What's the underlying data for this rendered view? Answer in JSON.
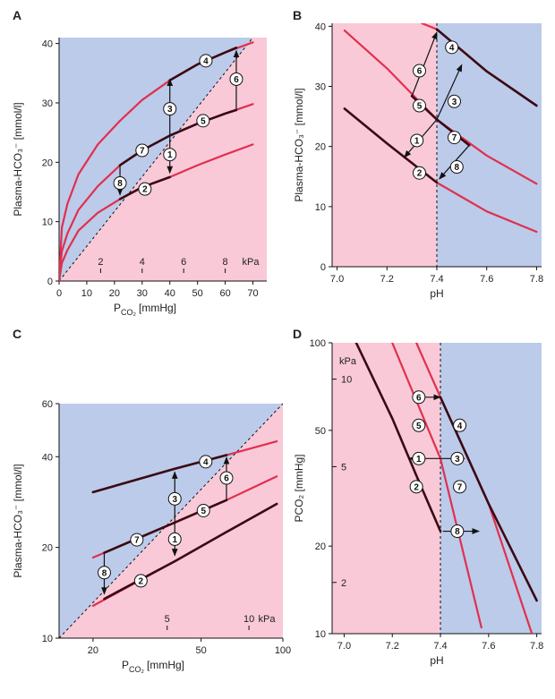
{
  "colors": {
    "pink": "#f9c9d8",
    "blue": "#bccbea",
    "red": "#e0304e",
    "dark": "#3a0a14",
    "ink": "#111111"
  },
  "chart_data": [
    {
      "id": "A",
      "type": "line",
      "panel_label": "A",
      "xlabel": "P",
      "xlabel_sub": "CO₂",
      "xlabel_unit": "[mmHg]",
      "ylabel": "Plasma-HCO₃⁻ [mmol/l]",
      "xlim": [
        0,
        75
      ],
      "ylim": [
        0,
        41
      ],
      "xscale": "linear",
      "yscale": "linear",
      "xticks": [
        "0",
        "10",
        "20",
        "30",
        "40",
        "50",
        "60",
        "70"
      ],
      "xticks_values": [
        0,
        10,
        20,
        30,
        40,
        50,
        60,
        70
      ],
      "yticks": [
        "0",
        "10",
        "20",
        "30",
        "40"
      ],
      "yticks_values": [
        0,
        10,
        20,
        30,
        40
      ],
      "secondary_xticks": [
        "2",
        "4",
        "6",
        "8"
      ],
      "secondary_xticks_values": [
        15,
        30,
        45,
        60
      ],
      "secondary_unit": "kPa",
      "divider": {
        "kind": "diag",
        "points": [
          [
            0,
            0
          ],
          [
            70,
            41
          ]
        ]
      },
      "background": {
        "upper_left": "blue",
        "lower_right": "pink"
      },
      "series": [
        {
          "color": "red",
          "points": [
            [
              0,
              0
            ],
            [
              1,
              9
            ],
            [
              3,
              13
            ],
            [
              7,
              18
            ],
            [
              14,
              23
            ],
            [
              22,
              27
            ],
            [
              30,
              30.5
            ],
            [
              40,
              33.8
            ],
            [
              50,
              36.5
            ],
            [
              60,
              38.5
            ],
            [
              70,
              40.2
            ]
          ]
        },
        {
          "color": "red",
          "points": [
            [
              0,
              0
            ],
            [
              1,
              5
            ],
            [
              3,
              8
            ],
            [
              7,
              12
            ],
            [
              14,
              16
            ],
            [
              22,
              19.5
            ],
            [
              30,
              22
            ],
            [
              40,
              24.5
            ],
            [
              50,
              26.5
            ],
            [
              60,
              28.2
            ],
            [
              70,
              29.8
            ]
          ]
        },
        {
          "color": "red",
          "points": [
            [
              0,
              0
            ],
            [
              1,
              3
            ],
            [
              3,
              5.2
            ],
            [
              7,
              8.5
            ],
            [
              14,
              11.5
            ],
            [
              22,
              13.8
            ],
            [
              30,
              15.8
            ],
            [
              40,
              17.5
            ],
            [
              50,
              19.5
            ],
            [
              60,
              21.3
            ],
            [
              70,
              23
            ]
          ]
        },
        {
          "color": "dark",
          "points": [
            [
              40,
              33.8
            ],
            [
              50,
              36.5
            ],
            [
              60,
              38.5
            ],
            [
              64,
              39.3
            ]
          ]
        },
        {
          "color": "dark",
          "points": [
            [
              22,
              19.5
            ],
            [
              30,
              22
            ],
            [
              40,
              24.5
            ],
            [
              50,
              26.5
            ],
            [
              60,
              28.2
            ],
            [
              64,
              28.8
            ]
          ]
        },
        {
          "color": "dark",
          "points": [
            [
              22,
              13.8
            ],
            [
              30,
              15.8
            ],
            [
              40,
              17.5
            ]
          ]
        }
      ],
      "arrows": [
        {
          "from": [
            40,
            24
          ],
          "to": [
            40,
            34
          ]
        },
        {
          "from": [
            40,
            24
          ],
          "to": [
            40,
            18.2
          ]
        },
        {
          "from": [
            64,
            29
          ],
          "to": [
            64,
            38.8
          ]
        },
        {
          "from": [
            22,
            19.5
          ],
          "to": [
            22,
            14.5
          ]
        }
      ],
      "markers": [
        {
          "label": "1",
          "x": 40,
          "y": 21.3
        },
        {
          "label": "2",
          "x": 31,
          "y": 15.5
        },
        {
          "label": "3",
          "x": 40,
          "y": 29
        },
        {
          "label": "4",
          "x": 53,
          "y": 37.1
        },
        {
          "label": "5",
          "x": 52,
          "y": 27
        },
        {
          "label": "6",
          "x": 64,
          "y": 34
        },
        {
          "label": "7",
          "x": 30,
          "y": 22
        },
        {
          "label": "8",
          "x": 22,
          "y": 16.5
        }
      ]
    },
    {
      "id": "B",
      "type": "line",
      "panel_label": "B",
      "xlabel": "pH",
      "ylabel": "Plasma-HCO₃⁻ [mmol/l]",
      "xlim": [
        6.98,
        7.82
      ],
      "ylim": [
        0,
        40.5
      ],
      "xscale": "linear",
      "yscale": "linear",
      "xticks": [
        "7.0",
        "7.2",
        "7.4",
        "7.6",
        "7.8"
      ],
      "xticks_values": [
        7.0,
        7.2,
        7.4,
        7.6,
        7.8
      ],
      "yticks": [
        "0",
        "10",
        "20",
        "30",
        "40"
      ],
      "yticks_values": [
        0,
        10,
        20,
        30,
        40
      ],
      "divider": {
        "kind": "vline",
        "x": 7.4
      },
      "background": {
        "left": "pink",
        "right": "blue"
      },
      "series": [
        {
          "color": "red",
          "points": [
            [
              7.03,
              39.3
            ],
            [
              7.2,
              33
            ],
            [
              7.4,
              24.5
            ],
            [
              7.6,
              18.5
            ],
            [
              7.8,
              13.8
            ]
          ]
        },
        {
          "color": "red",
          "points": [
            [
              7.03,
              26.3
            ],
            [
              7.2,
              20.5
            ],
            [
              7.4,
              14
            ],
            [
              7.6,
              9.2
            ],
            [
              7.8,
              5.8
            ]
          ]
        },
        {
          "color": "red",
          "points": [
            [
              7.34,
              40.5
            ],
            [
              7.4,
              39.5
            ],
            [
              7.6,
              32.5
            ],
            [
              7.8,
              26.8
            ]
          ]
        },
        {
          "color": "dark",
          "points": [
            [
              7.4,
              39.5
            ],
            [
              7.6,
              32.5
            ],
            [
              7.8,
              26.8
            ]
          ]
        },
        {
          "color": "dark",
          "points": [
            [
              7.03,
              26.3
            ],
            [
              7.2,
              20.5
            ],
            [
              7.4,
              14
            ]
          ]
        },
        {
          "color": "dark",
          "points": [
            [
              7.3,
              28.4
            ],
            [
              7.4,
              24.5
            ],
            [
              7.53,
              20.2
            ]
          ]
        }
      ],
      "arrows": [
        {
          "from": [
            7.4,
            24.5
          ],
          "to": [
            7.27,
            18.2
          ]
        },
        {
          "from": [
            7.4,
            24.5
          ],
          "to": [
            7.5,
            33.6
          ]
        },
        {
          "from": [
            7.3,
            28.4
          ],
          "to": [
            7.4,
            39
          ]
        },
        {
          "from": [
            7.53,
            20.2
          ],
          "to": [
            7.41,
            14.6
          ]
        }
      ],
      "markers": [
        {
          "label": "1",
          "x": 7.32,
          "y": 21
        },
        {
          "label": "2",
          "x": 7.33,
          "y": 15.6
        },
        {
          "label": "3",
          "x": 7.47,
          "y": 27.5
        },
        {
          "label": "4",
          "x": 7.46,
          "y": 36.5
        },
        {
          "label": "5",
          "x": 7.33,
          "y": 26.8
        },
        {
          "label": "6",
          "x": 7.33,
          "y": 32.6
        },
        {
          "label": "7",
          "x": 7.47,
          "y": 21.5
        },
        {
          "label": "8",
          "x": 7.48,
          "y": 16.6
        }
      ]
    },
    {
      "id": "C",
      "type": "line",
      "panel_label": "C",
      "xlabel": "P",
      "xlabel_sub": "CO₂",
      "xlabel_unit": "[mmHg]",
      "ylabel": "Plasma-HCO₃⁻ [mmol/l]",
      "xlim": [
        15,
        100
      ],
      "ylim": [
        10,
        60
      ],
      "xscale": "log",
      "yscale": "log",
      "xticks": [
        "20",
        "50",
        "100"
      ],
      "xticks_values": [
        20,
        50,
        100
      ],
      "yticks": [
        "10",
        "20",
        "40",
        "60"
      ],
      "yticks_values": [
        10,
        20,
        40,
        60
      ],
      "secondary_xticks": [
        "5",
        "10"
      ],
      "secondary_xticks_values": [
        37.5,
        75
      ],
      "secondary_unit": "kPa",
      "divider": {
        "kind": "diag",
        "points": [
          [
            15,
            10
          ],
          [
            100,
            60
          ]
        ]
      },
      "background": {
        "upper_left": "blue",
        "lower_right": "pink"
      },
      "series": [
        {
          "color": "red",
          "points": [
            [
              20,
              30.5
            ],
            [
              40,
              36.5
            ],
            [
              62,
              40.5
            ],
            [
              95,
              45
            ]
          ]
        },
        {
          "color": "red",
          "points": [
            [
              20,
              18.5
            ],
            [
              40,
              24.2
            ],
            [
              62,
              28.7
            ],
            [
              95,
              34.4
            ]
          ]
        },
        {
          "color": "red",
          "points": [
            [
              20,
              12.8
            ],
            [
              40,
              18
            ],
            [
              62,
              22.5
            ],
            [
              95,
              27.9
            ]
          ]
        },
        {
          "color": "dark",
          "points": [
            [
              20,
              30.5
            ],
            [
              40,
              36.5
            ],
            [
              62,
              40.5
            ]
          ]
        },
        {
          "color": "dark",
          "points": [
            [
              22,
              19.2
            ],
            [
              40,
              24.2
            ],
            [
              62,
              28.7
            ]
          ]
        },
        {
          "color": "dark",
          "points": [
            [
              22,
              13.5
            ],
            [
              40,
              18
            ],
            [
              62,
              22.5
            ],
            [
              95,
              27.9
            ]
          ]
        }
      ],
      "arrows": [
        {
          "from": [
            40,
            24.2
          ],
          "to": [
            40,
            35.6
          ]
        },
        {
          "from": [
            40,
            24.2
          ],
          "to": [
            40,
            18.8
          ]
        },
        {
          "from": [
            62,
            28.7
          ],
          "to": [
            62,
            39.8
          ]
        },
        {
          "from": [
            22,
            19.2
          ],
          "to": [
            22,
            14
          ]
        }
      ],
      "markers": [
        {
          "label": "1",
          "x": 40,
          "y": 21.3
        },
        {
          "label": "2",
          "x": 30,
          "y": 15.5
        },
        {
          "label": "3",
          "x": 40,
          "y": 29
        },
        {
          "label": "4",
          "x": 52,
          "y": 38.5
        },
        {
          "label": "5",
          "x": 51,
          "y": 26.5
        },
        {
          "label": "6",
          "x": 62,
          "y": 34
        },
        {
          "label": "7",
          "x": 29,
          "y": 21.2
        },
        {
          "label": "8",
          "x": 22,
          "y": 16.5
        }
      ]
    },
    {
      "id": "D",
      "type": "line",
      "panel_label": "D",
      "xlabel": "pH",
      "ylabel": "PCO₂ [mmHg]",
      "xlim": [
        6.95,
        7.82
      ],
      "ylim": [
        10,
        100
      ],
      "xscale": "linear",
      "yscale": "log",
      "xticks": [
        "7.0",
        "7.2",
        "7.4",
        "7.6",
        "7.8"
      ],
      "xticks_values": [
        7.0,
        7.2,
        7.4,
        7.6,
        7.8
      ],
      "yticks": [
        "10",
        "20",
        "50",
        "100"
      ],
      "yticks_values": [
        10,
        20,
        50,
        100
      ],
      "secondary_yticks": [
        "2",
        "5",
        "10"
      ],
      "secondary_yticks_values": [
        15,
        37.5,
        75
      ],
      "secondary_unit": "kPa",
      "divider": {
        "kind": "vline",
        "x": 7.4
      },
      "background": {
        "left": "pink",
        "right": "blue"
      },
      "series": [
        {
          "color": "red",
          "points": [
            [
              7.2,
              100
            ],
            [
              7.4,
              40
            ],
            [
              7.57,
              10.5
            ]
          ]
        },
        {
          "color": "red",
          "points": [
            [
              7.3,
              100
            ],
            [
              7.4,
              65
            ],
            [
              7.6,
              28
            ],
            [
              7.78,
              10
            ]
          ]
        },
        {
          "color": "dark",
          "points": [
            [
              7.05,
              100
            ],
            [
              7.2,
              55
            ],
            [
              7.3,
              35
            ],
            [
              7.4,
              22.5
            ]
          ]
        },
        {
          "color": "dark",
          "points": [
            [
              7.4,
              65
            ],
            [
              7.6,
              28
            ],
            [
              7.8,
              13
            ]
          ]
        }
      ],
      "arrows": [
        {
          "from": [
            7.4,
            40
          ],
          "to": [
            7.27,
            40
          ]
        },
        {
          "from": [
            7.4,
            40
          ],
          "to": [
            7.5,
            40
          ]
        },
        {
          "from": [
            7.32,
            65
          ],
          "to": [
            7.4,
            65
          ]
        },
        {
          "from": [
            7.41,
            22.5
          ],
          "to": [
            7.56,
            22.5
          ]
        }
      ],
      "markers": [
        {
          "label": "1",
          "x": 7.31,
          "y": 40
        },
        {
          "label": "2",
          "x": 7.3,
          "y": 32
        },
        {
          "label": "3",
          "x": 7.47,
          "y": 40
        },
        {
          "label": "4",
          "x": 7.48,
          "y": 52
        },
        {
          "label": "5",
          "x": 7.31,
          "y": 52
        },
        {
          "label": "6",
          "x": 7.31,
          "y": 65
        },
        {
          "label": "7",
          "x": 7.48,
          "y": 32
        },
        {
          "label": "8",
          "x": 7.47,
          "y": 22.5
        }
      ]
    }
  ]
}
